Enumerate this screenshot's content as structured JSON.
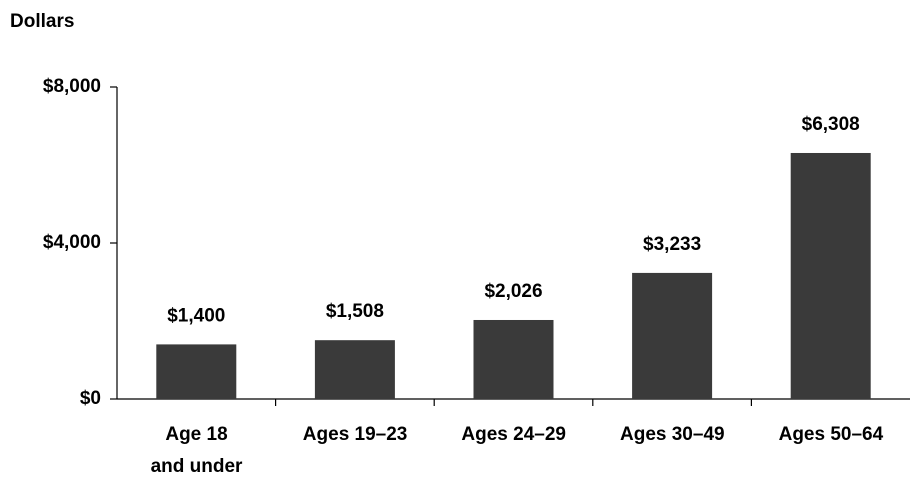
{
  "chart_data": {
    "type": "bar",
    "y_label": "Dollars",
    "categories": [
      "Age 18\nand under",
      "Ages 19–23",
      "Ages 24–29",
      "Ages 30–49",
      "Ages 50–64"
    ],
    "values": [
      1400,
      1508,
      2026,
      3233,
      6308
    ],
    "value_labels": [
      "$1,400",
      "$1,508",
      "$2,026",
      "$3,233",
      "$6,308"
    ],
    "color": "#3a3a3a",
    "ylim": [
      0,
      8000
    ],
    "yticks": [
      {
        "value": 0,
        "label": "$0"
      },
      {
        "value": 4000,
        "label": "$4,000"
      },
      {
        "value": 8000,
        "label": "$8,000"
      }
    ],
    "grid": false
  }
}
